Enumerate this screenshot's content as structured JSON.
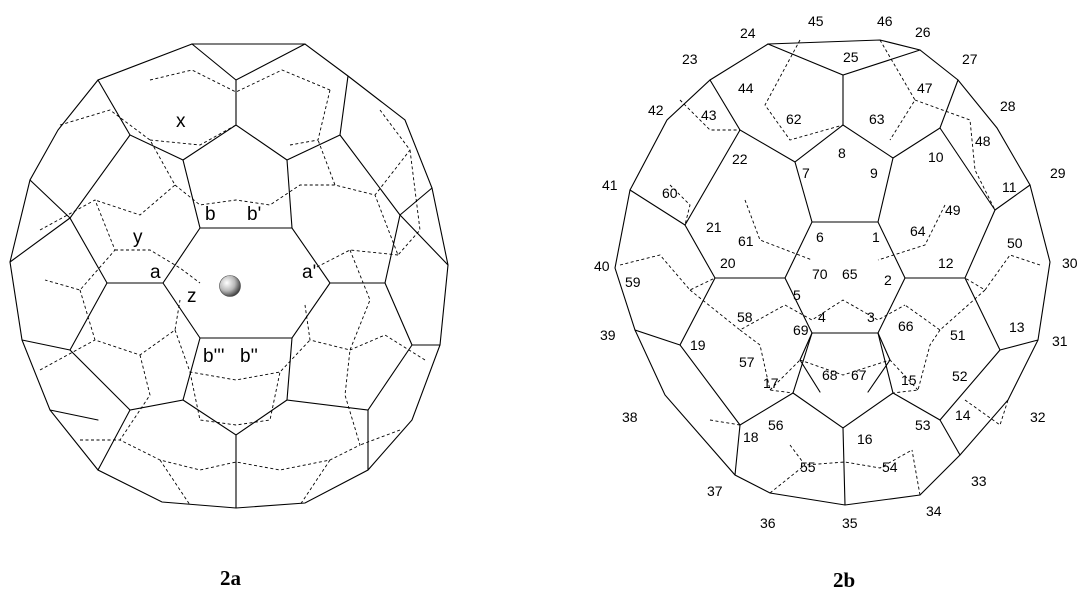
{
  "figure_a": {
    "caption": "2a",
    "bond_labels": [
      "x",
      "y",
      "z",
      "a",
      "a'",
      "b",
      "b'",
      "b''",
      "b'''"
    ],
    "center_atom": "metal-atom-sphere"
  },
  "figure_b": {
    "caption": "2b",
    "atom_numbers": [
      "1",
      "2",
      "3",
      "4",
      "5",
      "6",
      "7",
      "8",
      "9",
      "10",
      "11",
      "12",
      "13",
      "14",
      "15",
      "16",
      "17",
      "18",
      "19",
      "20",
      "21",
      "22",
      "23",
      "24",
      "25",
      "26",
      "27",
      "28",
      "29",
      "30",
      "31",
      "32",
      "33",
      "34",
      "35",
      "36",
      "37",
      "38",
      "39",
      "40",
      "41",
      "42",
      "43",
      "44",
      "45",
      "46",
      "47",
      "48",
      "49",
      "50",
      "51",
      "52",
      "53",
      "54",
      "55",
      "56",
      "57",
      "58",
      "59",
      "60",
      "61",
      "62",
      "63",
      "64",
      "65",
      "66",
      "67",
      "68",
      "69",
      "70"
    ]
  }
}
